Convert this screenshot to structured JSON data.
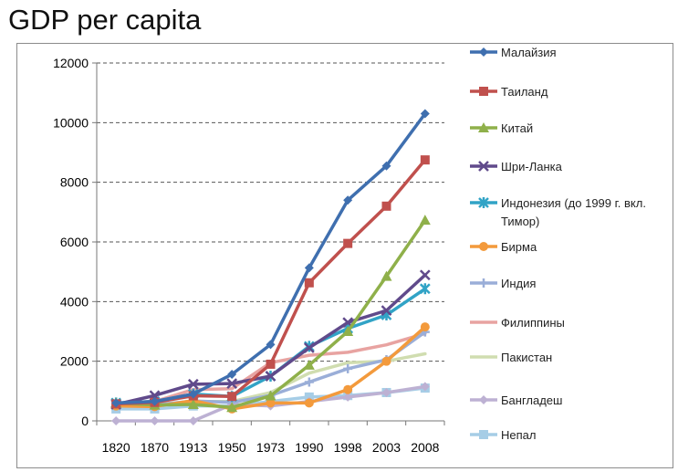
{
  "page": {
    "title": "GDP per capita"
  },
  "chart_data": {
    "type": "line",
    "title": "GDP per capita",
    "xlabel": "",
    "ylabel": "",
    "categories": [
      "1820",
      "1870",
      "1913",
      "1950",
      "1973",
      "1990",
      "1998",
      "2003",
      "2008"
    ],
    "ylim": [
      0,
      12000
    ],
    "yticks": [
      0,
      2000,
      4000,
      6000,
      8000,
      10000,
      12000
    ],
    "grid": "horizontal-dashed",
    "legend_position": "right",
    "series": [
      {
        "name": "Малайзия",
        "color": "#3f6faf",
        "marker": "diamond",
        "values": [
          600,
          650,
          900,
          1560,
          2560,
          5130,
          7400,
          8550,
          10300
        ]
      },
      {
        "name": "Таиланд",
        "color": "#c0504d",
        "marker": "square",
        "values": [
          570,
          620,
          840,
          820,
          1900,
          4630,
          5950,
          7200,
          8750
        ]
      },
      {
        "name": "Китай",
        "color": "#8fb04a",
        "marker": "triangle",
        "values": [
          600,
          530,
          550,
          450,
          840,
          1870,
          3000,
          4850,
          6730
        ]
      },
      {
        "name": "Шри-Ланка",
        "color": "#604a8b",
        "marker": "x",
        "values": [
          550,
          850,
          1230,
          1250,
          1500,
          2450,
          3300,
          3700,
          4890
        ]
      },
      {
        "name": "Индонезия (до 1999 г. вкл. Тимор)",
        "color": "#31a3c6",
        "marker": "star",
        "values": [
          600,
          650,
          900,
          820,
          1500,
          2500,
          3100,
          3550,
          4430
        ]
      },
      {
        "name": "Бирма",
        "color": "#f39a3c",
        "marker": "circle",
        "values": [
          500,
          480,
          680,
          400,
          600,
          600,
          1050,
          2000,
          3150
        ]
      },
      {
        "name": "Индия",
        "color": "#9aaed8",
        "marker": "plus",
        "values": [
          550,
          530,
          670,
          620,
          850,
          1300,
          1750,
          2050,
          2980
        ]
      },
      {
        "name": "Филиппины",
        "color": "#e8a3a1",
        "marker": "line",
        "values": [
          600,
          650,
          1050,
          1080,
          1950,
          2200,
          2300,
          2550,
          2930
        ]
      },
      {
        "name": "Пакистан",
        "color": "#d0ddb0",
        "marker": "line",
        "values": [
          550,
          550,
          650,
          650,
          950,
          1600,
          1950,
          2000,
          2250
        ]
      },
      {
        "name": "Бангладеш",
        "color": "#bdb1d3",
        "marker": "diamond",
        "values": [
          0,
          0,
          0,
          550,
          500,
          650,
          800,
          950,
          1150
        ]
      },
      {
        "name": "Непал",
        "color": "#a6cde6",
        "marker": "square",
        "values": [
          400,
          400,
          500,
          500,
          650,
          800,
          850,
          950,
          1100
        ]
      }
    ]
  }
}
